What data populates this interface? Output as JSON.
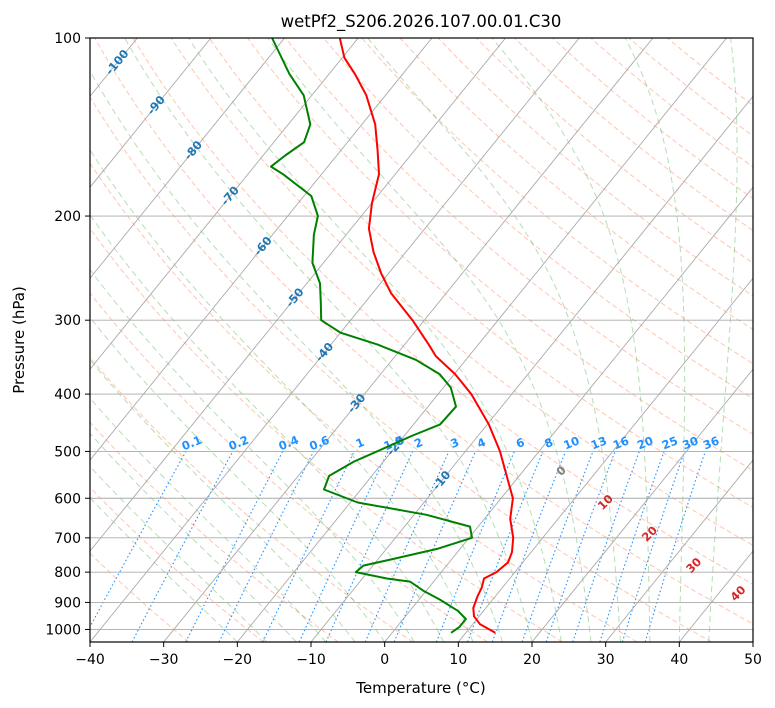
{
  "chart_data": {
    "type": "line",
    "title": "wetPf2_S206.2026.107.00.01.C30",
    "xlabel": "Temperature (°C)",
    "ylabel": "Pressure (hPa)",
    "xlim": [
      -40,
      50
    ],
    "ylim": [
      1050,
      100
    ],
    "y_scale": "log",
    "grid": true,
    "x_ticks": [
      -40,
      -30,
      -20,
      -10,
      0,
      10,
      20,
      30,
      40,
      50
    ],
    "y_ticks": [
      100,
      200,
      300,
      400,
      500,
      600,
      700,
      800,
      900,
      1000
    ],
    "skew": true,
    "colors": {
      "temperature": "#ff0000",
      "dewpoint": "#008000",
      "isotherm_label": "#1f77b4",
      "mixing_ratio": "#1e90ff",
      "moist_adiabat_label": "#d62728",
      "dry_adiabat": "#ff7f50",
      "moist_adiabat": "#2ca02c",
      "grid": "#aaaaaa"
    },
    "series": [
      {
        "role": "temperature",
        "points": [
          {
            "p": 1013,
            "t": 14.0
          },
          {
            "p": 980,
            "t": 11.0
          },
          {
            "p": 950,
            "t": 9.3
          },
          {
            "p": 920,
            "t": 8.3
          },
          {
            "p": 880,
            "t": 7.6
          },
          {
            "p": 850,
            "t": 7.2
          },
          {
            "p": 820,
            "t": 6.5
          },
          {
            "p": 800,
            "t": 7.5
          },
          {
            "p": 770,
            "t": 8.0
          },
          {
            "p": 740,
            "t": 7.4
          },
          {
            "p": 700,
            "t": 6.0
          },
          {
            "p": 650,
            "t": 3.5
          },
          {
            "p": 600,
            "t": 1.6
          },
          {
            "p": 550,
            "t": -1.7
          },
          {
            "p": 500,
            "t": -5.3
          },
          {
            "p": 450,
            "t": -9.8
          },
          {
            "p": 400,
            "t": -15.5
          },
          {
            "p": 370,
            "t": -19.9
          },
          {
            "p": 345,
            "t": -24.5
          },
          {
            "p": 330,
            "t": -26.7
          },
          {
            "p": 300,
            "t": -31.6
          },
          {
            "p": 270,
            "t": -37.5
          },
          {
            "p": 250,
            "t": -41.0
          },
          {
            "p": 230,
            "t": -44.4
          },
          {
            "p": 210,
            "t": -47.6
          },
          {
            "p": 190,
            "t": -50.0
          },
          {
            "p": 170,
            "t": -52.2
          },
          {
            "p": 155,
            "t": -55.0
          },
          {
            "p": 140,
            "t": -58.2
          },
          {
            "p": 125,
            "t": -62.6
          },
          {
            "p": 115,
            "t": -66.5
          },
          {
            "p": 108,
            "t": -69.7
          },
          {
            "p": 100,
            "t": -72.5
          }
        ]
      },
      {
        "role": "dewpoint",
        "points": [
          {
            "p": 1013,
            "t": 8.0
          },
          {
            "p": 990,
            "t": 8.5
          },
          {
            "p": 960,
            "t": 8.5
          },
          {
            "p": 930,
            "t": 6.5
          },
          {
            "p": 890,
            "t": 2.8
          },
          {
            "p": 860,
            "t": -0.4
          },
          {
            "p": 830,
            "t": -3.2
          },
          {
            "p": 820,
            "t": -6.7
          },
          {
            "p": 800,
            "t": -11.6
          },
          {
            "p": 780,
            "t": -11.3
          },
          {
            "p": 760,
            "t": -8.0
          },
          {
            "p": 730,
            "t": -3.0
          },
          {
            "p": 700,
            "t": 0.4
          },
          {
            "p": 670,
            "t": -1.1
          },
          {
            "p": 640,
            "t": -8.3
          },
          {
            "p": 610,
            "t": -19.0
          },
          {
            "p": 580,
            "t": -25.0
          },
          {
            "p": 550,
            "t": -25.8
          },
          {
            "p": 520,
            "t": -24.0
          },
          {
            "p": 500,
            "t": -22.0
          },
          {
            "p": 470,
            "t": -18.9
          },
          {
            "p": 450,
            "t": -16.4
          },
          {
            "p": 420,
            "t": -16.2
          },
          {
            "p": 390,
            "t": -19.0
          },
          {
            "p": 370,
            "t": -22.0
          },
          {
            "p": 350,
            "t": -26.8
          },
          {
            "p": 330,
            "t": -33.6
          },
          {
            "p": 315,
            "t": -40.0
          },
          {
            "p": 300,
            "t": -44.0
          },
          {
            "p": 280,
            "t": -46.0
          },
          {
            "p": 260,
            "t": -48.2
          },
          {
            "p": 240,
            "t": -51.5
          },
          {
            "p": 215,
            "t": -54.4
          },
          {
            "p": 200,
            "t": -55.9
          },
          {
            "p": 185,
            "t": -59.0
          },
          {
            "p": 170,
            "t": -65.2
          },
          {
            "p": 165,
            "t": -67.7
          },
          {
            "p": 158,
            "t": -67.0
          },
          {
            "p": 150,
            "t": -65.9
          },
          {
            "p": 140,
            "t": -67.0
          },
          {
            "p": 125,
            "t": -71.1
          },
          {
            "p": 115,
            "t": -75.4
          },
          {
            "p": 105,
            "t": -79.5
          },
          {
            "p": 100,
            "t": -81.7
          }
        ]
      }
    ],
    "isotherm_labels": [
      "-100",
      "-90",
      "-80",
      "-70",
      "-60",
      "-50",
      "-40",
      "-30",
      "-20",
      "-10"
    ],
    "mixing_ratio_labels": [
      "0.1",
      "0.2",
      "0.4",
      "0.6",
      "1",
      "1.5",
      "2",
      "3",
      "4",
      "6",
      "8",
      "10",
      "13",
      "16",
      "20",
      "25",
      "30",
      "36"
    ],
    "mixing_ratio_values": [
      0.1,
      0.2,
      0.4,
      0.6,
      1,
      1.5,
      2,
      3,
      4,
      6,
      8,
      10,
      13,
      16,
      20,
      25,
      30,
      36
    ],
    "moist_adiabat_labels": [
      "0",
      "10",
      "20",
      "30",
      "40"
    ]
  }
}
